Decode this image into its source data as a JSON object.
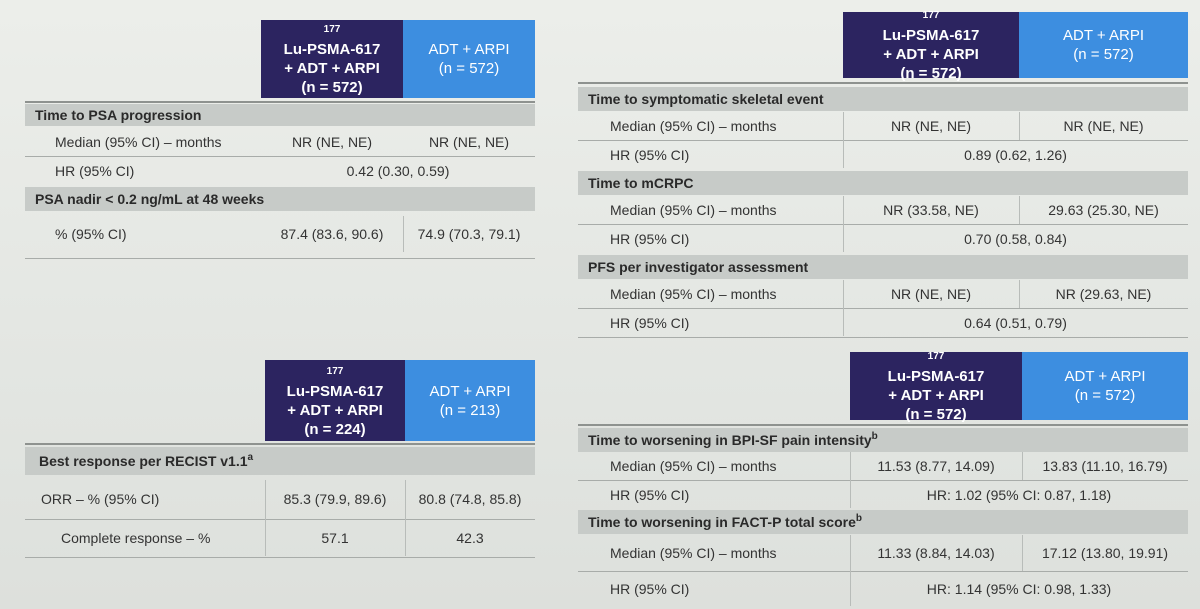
{
  "header_lu_n572": {
    "line1": "177",
    "line1b": "Lu-PSMA-617",
    "line2": "+ ADT + ARPI",
    "line3": "(n = 572)"
  },
  "header_lu_n224": {
    "line1": "177",
    "line1b": "Lu-PSMA-617",
    "line2": "+ ADT + ARPI",
    "line3": "(n = 224)"
  },
  "header_adt_n572": {
    "line1": "ADT + ARPI",
    "line2": "(n = 572)"
  },
  "header_adt_n213": {
    "line1": "ADT + ARPI",
    "line2": "(n = 213)"
  },
  "table_psa": {
    "section1": "Time to PSA progression",
    "median_label": "Median (95% CI) – months",
    "median_lu": "NR (NE, NE)",
    "median_adt": "NR (NE, NE)",
    "hr_label": "HR (95% CI)",
    "hr_value": "0.42 (0.30, 0.59)",
    "section2": "PSA nadir < 0.2 ng/mL at 48 weeks",
    "pct_label": "% (95% CI)",
    "pct_lu": "87.4 (83.6, 90.6)",
    "pct_adt": "74.9 (70.3, 79.1)"
  },
  "table_recist": {
    "section": "Best response per RECIST v1.1",
    "section_sup": "a",
    "orr_label": "ORR – % (95% CI)",
    "orr_lu": "85.3 (79.9, 89.6)",
    "orr_adt": "80.8 (74.8, 85.8)",
    "cr_label": "Complete response – %",
    "cr_lu": "57.1",
    "cr_adt": "42.3"
  },
  "table_skeletal": {
    "section1": "Time to symptomatic skeletal event",
    "s1_median_label": "Median (95% CI) – months",
    "s1_median_lu": "NR (NE, NE)",
    "s1_median_adt": "NR (NE, NE)",
    "s1_hr_label": "HR (95% CI)",
    "s1_hr": "0.89 (0.62, 1.26)",
    "section2": "Time to mCRPC",
    "s2_median_label": "Median (95% CI) – months",
    "s2_median_lu": "NR (33.58, NE)",
    "s2_median_adt": "29.63 (25.30, NE)",
    "s2_hr_label": "HR (95% CI)",
    "s2_hr": "0.70 (0.58, 0.84)",
    "section3": "PFS per investigator assessment",
    "s3_median_label": "Median (95% CI) – months",
    "s3_median_lu": "NR (NE, NE)",
    "s3_median_adt": "NR (29.63, NE)",
    "s3_hr_label": "HR (95% CI)",
    "s3_hr": "0.64 (0.51, 0.79)"
  },
  "table_qol": {
    "section1": "Time to worsening in BPI-SF pain intensity",
    "section1_sup": "b",
    "s1_median_label": "Median (95% CI) – months",
    "s1_median_lu": "11.53 (8.77, 14.09)",
    "s1_median_adt": "13.83 (11.10, 16.79)",
    "s1_hr_label": "HR (95% CI)",
    "s1_hr": "HR: 1.02 (95% CI: 0.87, 1.18)",
    "section2": "Time to worsening in FACT-P total score",
    "section2_sup": "b",
    "s2_median_label": "Median (95% CI) – months",
    "s2_median_lu": "11.33 (8.84, 14.03)",
    "s2_median_adt": "17.12 (13.80, 19.91)",
    "s2_hr_label": "HR (95% CI)",
    "s2_hr": "HR: 1.14 (95% CI: 0.98, 1.33)"
  }
}
